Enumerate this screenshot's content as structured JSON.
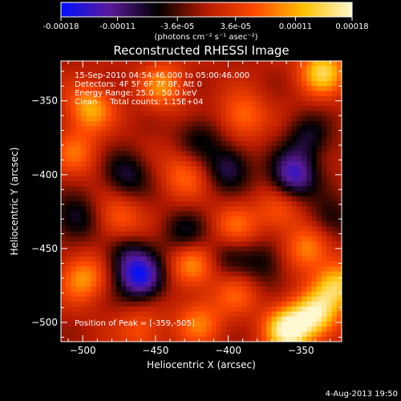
{
  "colorbar": {
    "tick_labels": [
      "-0.00018",
      "-0.00011",
      "-3.6e-05",
      "3.6e-05",
      "0.00011",
      "0.00018"
    ],
    "tick_values": [
      -0.00018,
      -0.00011,
      -3.6e-05,
      3.6e-05,
      0.00011,
      0.00018
    ],
    "range": [
      -0.00018,
      0.00018
    ],
    "unit_label": "(photons cm⁻² s⁻¹ asec⁻²)",
    "colormap": [
      "#0010ff",
      "#5a1a9a",
      "#000000",
      "#b51a00",
      "#ff4a00",
      "#ffc000",
      "#fff8d0"
    ]
  },
  "title": "Reconstructed RHESSI Image",
  "annotations": {
    "line1": "15-Sep-2010 04:54:46.000 to 05:00:46.000",
    "line2": "Detectors: 4F 5F 6F 7F 8F, Att 0",
    "line3": "Energy Range: 25.0 - 50.0 keV",
    "line4": "Clean     Total counts: 1.15E+04",
    "peak": "Position of Peak = [-359,-505]"
  },
  "footer_date": "4-Aug-2013 19:50",
  "chart_data": {
    "type": "heatmap",
    "title": "Reconstructed RHESSI Image",
    "xlabel": "Heliocentric X (arcsec)",
    "ylabel": "Heliocentric Y (arcsec)",
    "xlim": [
      -515,
      -322
    ],
    "ylim": [
      -513,
      -323
    ],
    "xticks": [
      -500,
      -450,
      -400,
      -350
    ],
    "yticks": [
      -350,
      -400,
      -450,
      -500
    ],
    "xtick_labels": [
      "−500",
      "−450",
      "−400",
      "−350"
    ],
    "ytick_labels": [
      "−350",
      "−400",
      "−450",
      "−500"
    ],
    "peak_position": [
      -359,
      -505
    ],
    "peak_value": 0.00018,
    "blobs": [
      {
        "x": -359,
        "y": -505,
        "v": 0.00018
      },
      {
        "x": -340,
        "y": -495,
        "v": 0.00015
      },
      {
        "x": -335,
        "y": -330,
        "v": 0.00014
      },
      {
        "x": -325,
        "y": -475,
        "v": 0.00013
      },
      {
        "x": -345,
        "y": -450,
        "v": 9e-05
      },
      {
        "x": -495,
        "y": -355,
        "v": 0.00011
      },
      {
        "x": -445,
        "y": -340,
        "v": 9e-05
      },
      {
        "x": -390,
        "y": -360,
        "v": 8e-05
      },
      {
        "x": -500,
        "y": -470,
        "v": 0.0001
      },
      {
        "x": -505,
        "y": -385,
        "v": 7e-05
      },
      {
        "x": -430,
        "y": -400,
        "v": 7e-05
      },
      {
        "x": -475,
        "y": -430,
        "v": 7e-05
      },
      {
        "x": -425,
        "y": -460,
        "v": 9e-05
      },
      {
        "x": -395,
        "y": -435,
        "v": 7e-05
      },
      {
        "x": -420,
        "y": -500,
        "v": 8e-05
      },
      {
        "x": -460,
        "y": -505,
        "v": 6e-05
      },
      {
        "x": -365,
        "y": -425,
        "v": 6e-05
      },
      {
        "x": -395,
        "y": -480,
        "v": 6e-05
      },
      {
        "x": -460,
        "y": -470,
        "v": -0.00015
      },
      {
        "x": -355,
        "y": -400,
        "v": -0.00014
      },
      {
        "x": -400,
        "y": -395,
        "v": -9e-05
      },
      {
        "x": -470,
        "y": -400,
        "v": -8e-05
      },
      {
        "x": -505,
        "y": -430,
        "v": -8e-05
      },
      {
        "x": -430,
        "y": -440,
        "v": -7e-05
      },
      {
        "x": -470,
        "y": -455,
        "v": -7e-05
      },
      {
        "x": -345,
        "y": -375,
        "v": -7e-05
      },
      {
        "x": -375,
        "y": -460,
        "v": -6e-05
      },
      {
        "x": -420,
        "y": -375,
        "v": -6e-05
      },
      {
        "x": -330,
        "y": -430,
        "v": -6e-05
      },
      {
        "x": -400,
        "y": -455,
        "v": -5e-05
      }
    ]
  }
}
